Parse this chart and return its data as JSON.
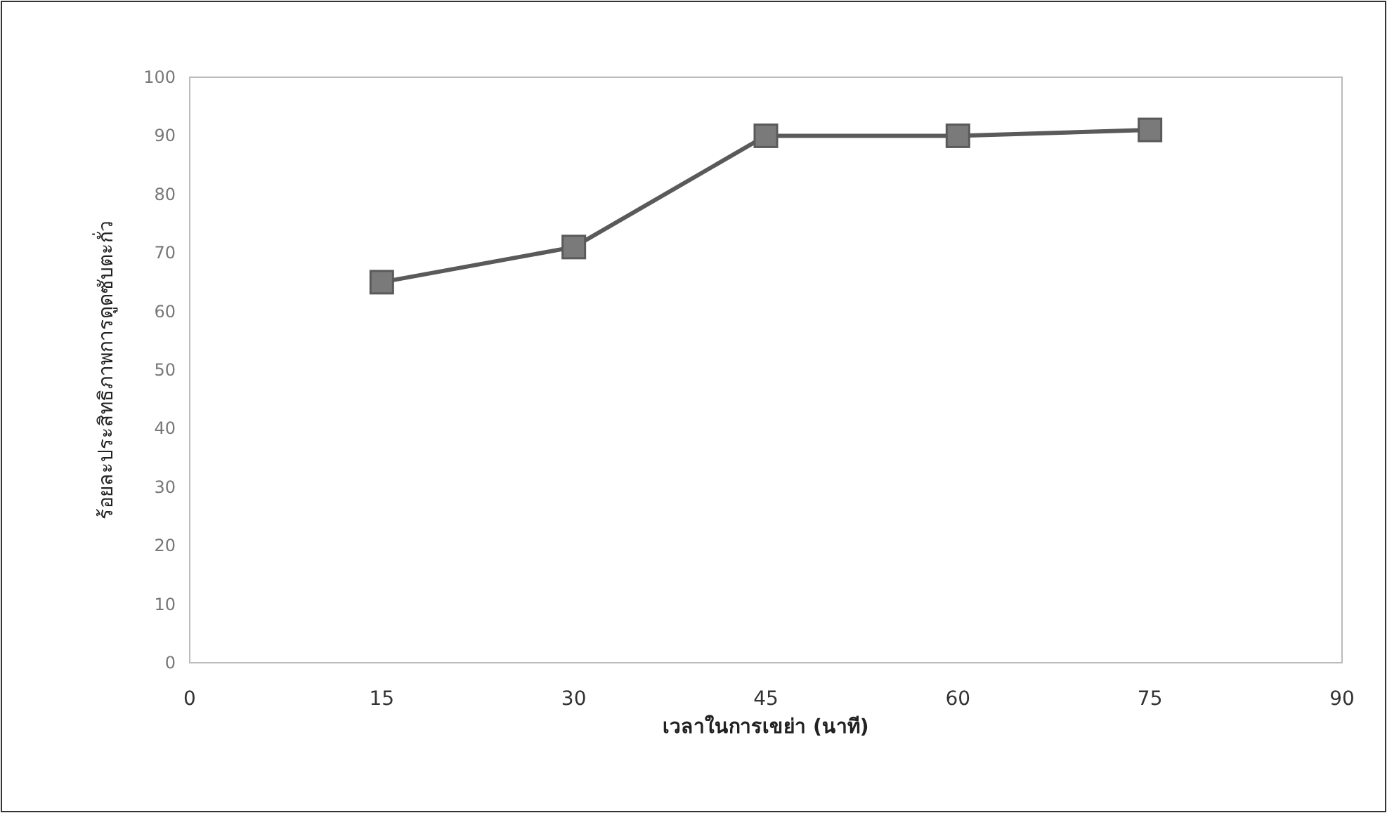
{
  "chart_data": {
    "type": "line",
    "xlabel": "เวลาในการเขย่า (นาที)",
    "ylabel": "ร้อยละประสิทธิภาพการดูดซับตะกั่ว",
    "x": [
      15,
      30,
      45,
      60,
      75
    ],
    "series": [
      {
        "color": "#5a5a5a",
        "values": [
          65,
          71,
          90,
          90,
          91
        ]
      }
    ],
    "xlim": [
      0,
      90
    ],
    "ylim": [
      0,
      100
    ],
    "xticks": [
      0,
      15,
      30,
      45,
      60,
      75,
      90
    ],
    "yticks": [
      0,
      10,
      20,
      30,
      40,
      50,
      60,
      70,
      80,
      90,
      100
    ],
    "marker": "square",
    "line_style": "solid"
  }
}
